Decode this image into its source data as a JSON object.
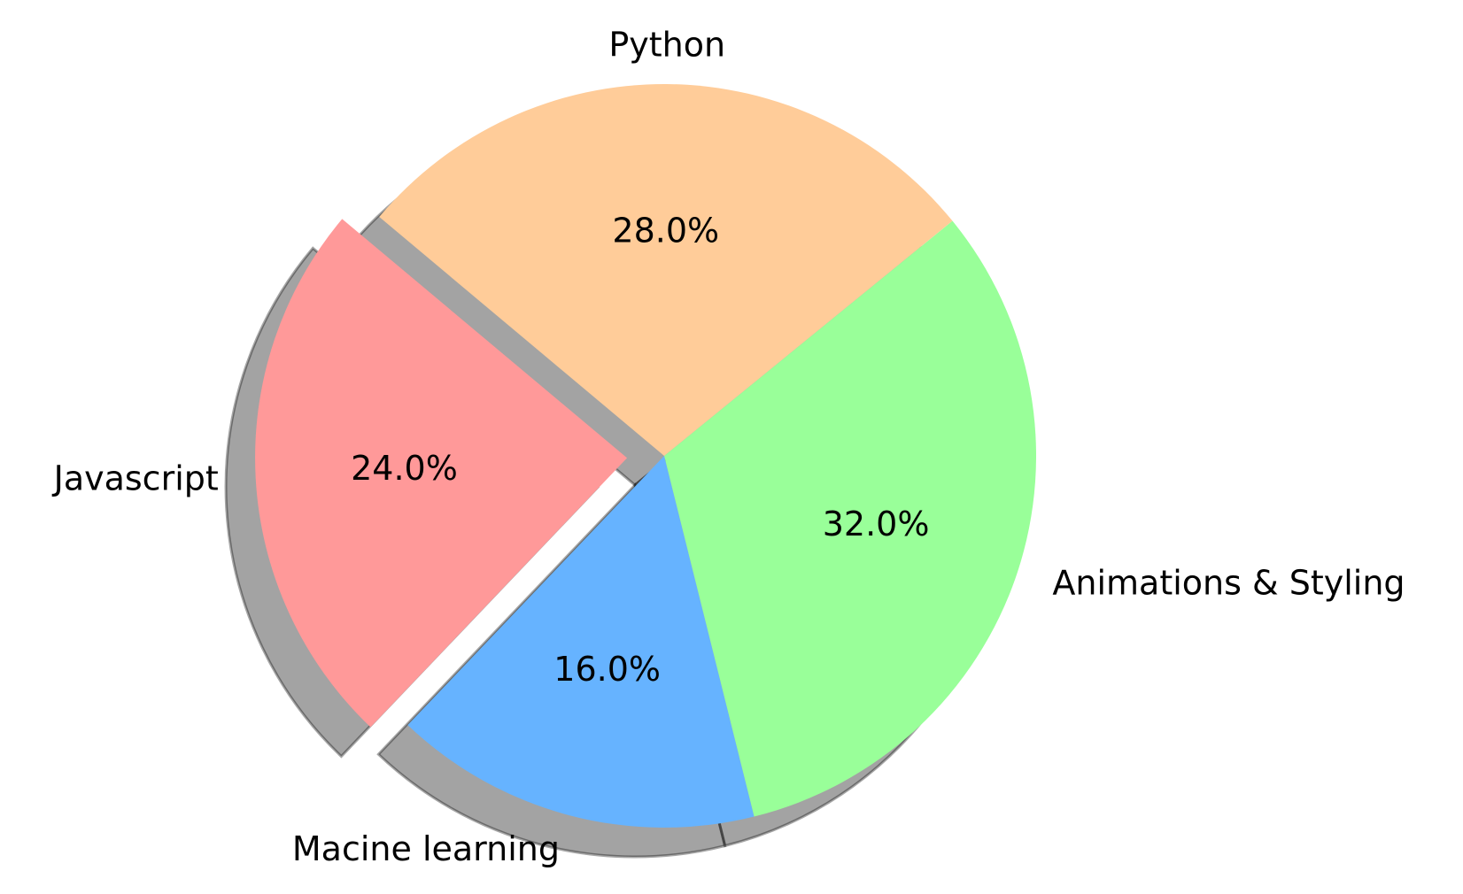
{
  "chart_data": {
    "type": "pie",
    "title": "",
    "slices": [
      {
        "label": "Javascript",
        "value": 24.0,
        "pct_label": "24.0%",
        "color": "#ff9999",
        "exploded": true
      },
      {
        "label": "Macine learning",
        "value": 16.0,
        "pct_label": "16.0%",
        "color": "#66b3ff",
        "exploded": false
      },
      {
        "label": "Animations & Styling",
        "value": 32.0,
        "pct_label": "32.0%",
        "color": "#99ff99",
        "exploded": false
      },
      {
        "label": "Python",
        "value": 28.0,
        "pct_label": "28.0%",
        "color": "#ffcc99",
        "exploded": false
      }
    ],
    "start_angle_deg": 140,
    "direction": "counterclockwise",
    "shadow": true,
    "legend": "none"
  }
}
